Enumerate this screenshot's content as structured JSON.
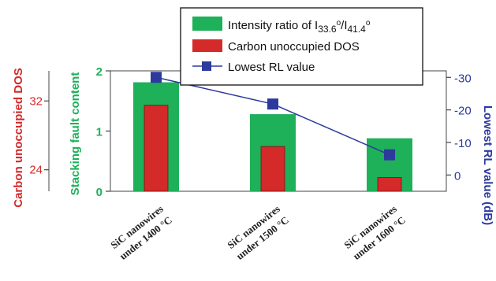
{
  "chart_data": {
    "type": "bar",
    "categories": [
      "SiC nanowires under 1400 °C",
      "SiC nanowires under 1500 °C",
      "SiC nanowires under 1600 °C"
    ],
    "category_lines": [
      [
        "SiC nanowires",
        "under 1400 °C"
      ],
      [
        "SiC nanowires",
        "under 1500 °C"
      ],
      [
        "SiC nanowires",
        "under 1600 °C"
      ]
    ],
    "series": [
      {
        "name": "Intensity ratio of I33.6°/I41.4°",
        "kind": "bar",
        "axis": "stacking",
        "values": [
          1.81,
          1.28,
          0.88
        ],
        "color": "#1fb05a"
      },
      {
        "name": "Carbon unoccupied DOS",
        "kind": "bar",
        "axis": "carbon",
        "values": [
          31.5,
          26.7,
          23.1
        ],
        "color": "#d42a2a"
      },
      {
        "name": "Lowest RL value",
        "kind": "line",
        "axis": "rl",
        "values": [
          -30.0,
          -21.8,
          -6.2
        ],
        "color": "#2c3a9e"
      }
    ],
    "axes": {
      "stacking": {
        "label": "Stacking fault content",
        "ylim": [
          0,
          2.0
        ],
        "ticks": [
          "0",
          "1",
          "2"
        ],
        "tick_values": [
          0,
          1,
          2
        ],
        "color": "#1fb05a"
      },
      "carbon": {
        "label": "Carbon unoccupied DOS",
        "ylim": [
          21.5,
          35.5
        ],
        "ticks": [
          "24",
          "32"
        ],
        "tick_values": [
          24,
          32
        ],
        "color": "#d42a2a"
      },
      "rl": {
        "label": "Lowest RL value (dB)",
        "ylim": [
          5,
          -32
        ],
        "ticks": [
          "0",
          "-10",
          "-20",
          "-30"
        ],
        "tick_values": [
          0,
          -10,
          -20,
          -30
        ],
        "color": "#2c3a9e"
      }
    },
    "legend": {
      "position": "top",
      "items": [
        {
          "prefix": "Intensity ratio of I",
          "sub1": "33.6",
          "sup1": "o",
          "mid": "/I",
          "sub2": "41.4",
          "sup2": "o"
        },
        {
          "text": "Carbon unoccupied DOS"
        },
        {
          "text": "Lowest RL value"
        }
      ]
    }
  }
}
